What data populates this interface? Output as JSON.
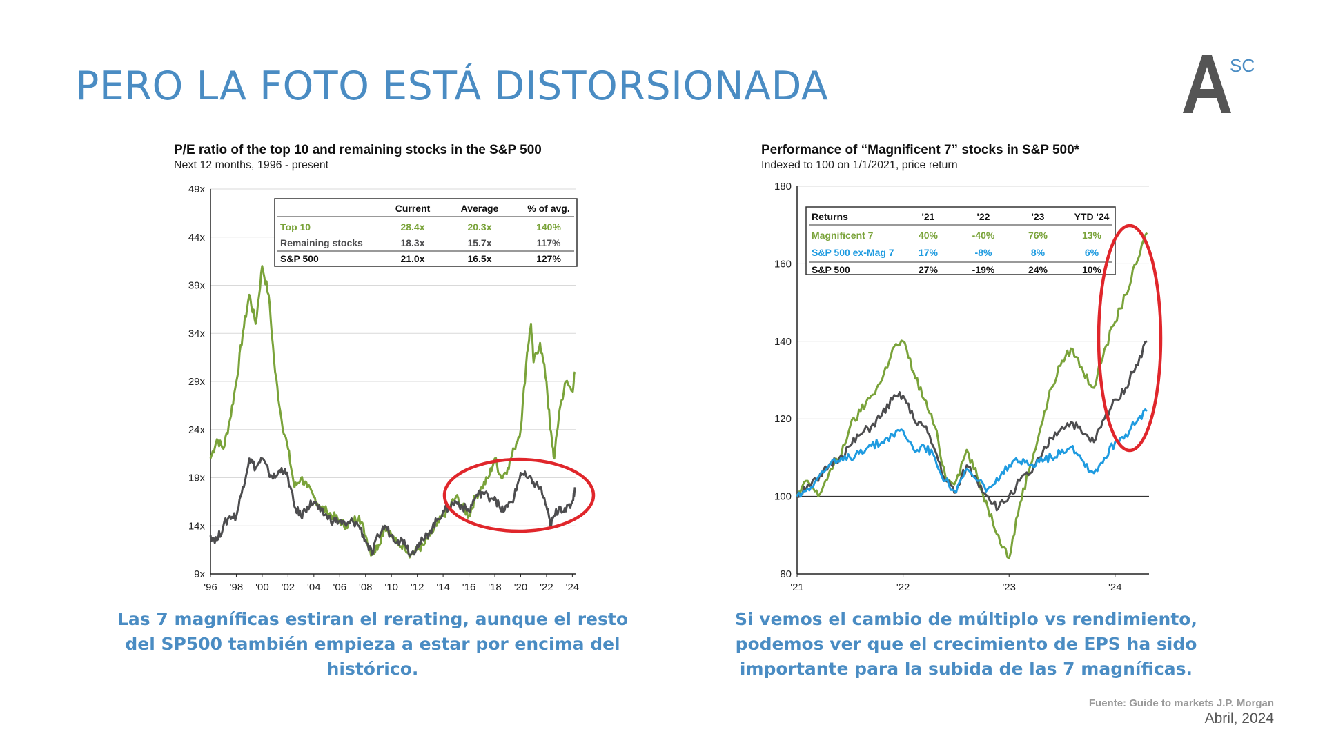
{
  "slide": {
    "title": "PERO LA FOTO ESTÁ DISTORSIONADA",
    "logo_text": "A",
    "logo_superscript": "SC",
    "caption_left": "Las 7 magníficas estiran el rerating, aunque el resto del SP500 también empieza a estar por encima del histórico.",
    "caption_right": "Si vemos el cambio de múltiplo vs rendimiento, podemos ver que el crecimiento de EPS ha sido importante para la subida de las 7 magníficas.",
    "source": "Fuente: Guide to markets J.P. Morgan",
    "date": "Abril, 2024"
  },
  "colors": {
    "title_blue": "#4a8cc3",
    "green": "#7aa33a",
    "gray": "#4d4d4f",
    "blue": "#1f9be0",
    "red": "#e0262b"
  },
  "chart_data": [
    {
      "type": "line",
      "title": "P/E ratio of the top 10 and remaining stocks in the S&P 500",
      "subtitle": "Next 12 months, 1996 - present",
      "ylim": [
        9,
        49
      ],
      "y_ticks": [
        "49x",
        "44x",
        "39x",
        "34x",
        "29x",
        "24x",
        "19x",
        "14x",
        "9x"
      ],
      "y_tick_values": [
        49,
        44,
        39,
        34,
        29,
        24,
        19,
        14,
        9
      ],
      "x_ticks": [
        "'96",
        "'98",
        "'00",
        "'02",
        "'04",
        "'06",
        "'08",
        "'10",
        "'12",
        "'14",
        "'16",
        "'18",
        "'20",
        "'22",
        "'24"
      ],
      "xlim": [
        1996,
        2024.3
      ],
      "table": {
        "headers": [
          "",
          "Current",
          "Average",
          "% of avg."
        ],
        "rows": [
          {
            "label": "Top 10",
            "values": [
              "28.4x",
              "20.3x",
              "140%"
            ],
            "color": "#7aa33a"
          },
          {
            "label": "Remaining stocks",
            "values": [
              "18.3x",
              "15.7x",
              "117%"
            ],
            "color": "#4d4d4f"
          },
          {
            "label": "S&P 500",
            "values": [
              "21.0x",
              "16.5x",
              "127%"
            ],
            "color": "#111111"
          }
        ]
      },
      "series": [
        {
          "color": "#7aa33a",
          "points": [
            [
              1996,
              21
            ],
            [
              1996.5,
              23
            ],
            [
              1997,
              22
            ],
            [
              1997.5,
              25
            ],
            [
              1998,
              29
            ],
            [
              1998.5,
              34
            ],
            [
              1999,
              38
            ],
            [
              1999.5,
              35
            ],
            [
              2000,
              41
            ],
            [
              2000.5,
              38
            ],
            [
              2001,
              30
            ],
            [
              2001.5,
              25
            ],
            [
              2002,
              22
            ],
            [
              2002.5,
              18
            ],
            [
              2003,
              19
            ],
            [
              2003.5,
              18
            ],
            [
              2004,
              17
            ],
            [
              2004.5,
              16
            ],
            [
              2005,
              15.5
            ],
            [
              2005.5,
              15
            ],
            [
              2006,
              14.5
            ],
            [
              2006.5,
              14
            ],
            [
              2007,
              14.5
            ],
            [
              2007.5,
              15
            ],
            [
              2008,
              13
            ],
            [
              2008.5,
              11
            ],
            [
              2009,
              12
            ],
            [
              2009.5,
              14
            ],
            [
              2010,
              13
            ],
            [
              2010.5,
              12
            ],
            [
              2011,
              12
            ],
            [
              2011.5,
              11
            ],
            [
              2012,
              11.5
            ],
            [
              2012.5,
              12
            ],
            [
              2013,
              13
            ],
            [
              2013.5,
              14
            ],
            [
              2014,
              15
            ],
            [
              2014.5,
              16
            ],
            [
              2015,
              17
            ],
            [
              2015.5,
              16
            ],
            [
              2016,
              15
            ],
            [
              2016.5,
              17
            ],
            [
              2017,
              18
            ],
            [
              2017.5,
              19
            ],
            [
              2018,
              21
            ],
            [
              2018.5,
              19
            ],
            [
              2019,
              20
            ],
            [
              2019.5,
              22
            ],
            [
              2020,
              24
            ],
            [
              2020.5,
              32
            ],
            [
              2020.8,
              35
            ],
            [
              2021,
              31
            ],
            [
              2021.5,
              33
            ],
            [
              2022,
              29
            ],
            [
              2022.3,
              24
            ],
            [
              2022.6,
              21
            ],
            [
              2023,
              26
            ],
            [
              2023.5,
              29
            ],
            [
              2024,
              28
            ],
            [
              2024.2,
              30
            ]
          ]
        },
        {
          "color": "#4d4d4f",
          "points": [
            [
              1996,
              13
            ],
            [
              1996.5,
              12.5
            ],
            [
              1997,
              14
            ],
            [
              1997.5,
              15
            ],
            [
              1998,
              15
            ],
            [
              1998.5,
              18
            ],
            [
              1999,
              21
            ],
            [
              1999.5,
              20
            ],
            [
              2000,
              21
            ],
            [
              2000.5,
              19.5
            ],
            [
              2001,
              19
            ],
            [
              2001.5,
              20
            ],
            [
              2002,
              19
            ],
            [
              2002.5,
              16
            ],
            [
              2003,
              15
            ],
            [
              2003.5,
              16
            ],
            [
              2004,
              16.5
            ],
            [
              2004.5,
              15.5
            ],
            [
              2005,
              15
            ],
            [
              2005.5,
              14.5
            ],
            [
              2006,
              14.5
            ],
            [
              2006.5,
              14
            ],
            [
              2007,
              14.5
            ],
            [
              2007.5,
              14
            ],
            [
              2008,
              12.5
            ],
            [
              2008.5,
              11
            ],
            [
              2009,
              13
            ],
            [
              2009.5,
              14
            ],
            [
              2010,
              13
            ],
            [
              2010.5,
              12.5
            ],
            [
              2011,
              12.5
            ],
            [
              2011.5,
              11
            ],
            [
              2012,
              12
            ],
            [
              2012.5,
              12.5
            ],
            [
              2013,
              13.5
            ],
            [
              2013.5,
              14.5
            ],
            [
              2014,
              15.5
            ],
            [
              2014.5,
              16
            ],
            [
              2015,
              16.5
            ],
            [
              2015.5,
              16
            ],
            [
              2016,
              15.5
            ],
            [
              2016.5,
              17
            ],
            [
              2017,
              17.5
            ],
            [
              2017.5,
              17
            ],
            [
              2018,
              17
            ],
            [
              2018.5,
              15.5
            ],
            [
              2019,
              16
            ],
            [
              2019.5,
              17
            ],
            [
              2020,
              19.5
            ],
            [
              2020.5,
              19
            ],
            [
              2021,
              18.5
            ],
            [
              2021.5,
              18
            ],
            [
              2022,
              16
            ],
            [
              2022.3,
              14
            ],
            [
              2022.6,
              15
            ],
            [
              2023,
              16
            ],
            [
              2023.5,
              15.5
            ],
            [
              2024,
              16.5
            ],
            [
              2024.2,
              18
            ]
          ]
        }
      ],
      "annotation": "red ellipse highlighting 2015-2024"
    },
    {
      "type": "line",
      "title": "Performance of “Magnificent 7” stocks in S&P 500*",
      "subtitle": "Indexed to 100 on 1/1/2021, price return",
      "ylim": [
        80,
        180
      ],
      "y_ticks": [
        "180",
        "160",
        "140",
        "120",
        "100",
        "80"
      ],
      "y_tick_values": [
        180,
        160,
        140,
        120,
        100,
        80
      ],
      "x_ticks": [
        "'21",
        "'22",
        "'23",
        "'24"
      ],
      "xlim": [
        2021,
        2024.32
      ],
      "table": {
        "headers": [
          "Returns",
          "'21",
          "'22",
          "'23",
          "YTD '24"
        ],
        "rows": [
          {
            "label": "Magnificent 7",
            "values": [
              "40%",
              "-40%",
              "76%",
              "13%"
            ],
            "color": "#7aa33a"
          },
          {
            "label": "S&P 500 ex-Mag 7",
            "values": [
              "17%",
              "-8%",
              "8%",
              "6%"
            ],
            "color": "#1f9be0"
          },
          {
            "label": "S&P 500",
            "values": [
              "27%",
              "-19%",
              "24%",
              "10%"
            ],
            "color": "#111111"
          }
        ]
      },
      "series": [
        {
          "color": "#7aa33a",
          "points": [
            [
              2021,
              100
            ],
            [
              2021.1,
              104
            ],
            [
              2021.2,
              100
            ],
            [
              2021.3,
              106
            ],
            [
              2021.4,
              110
            ],
            [
              2021.5,
              118
            ],
            [
              2021.6,
              122
            ],
            [
              2021.7,
              126
            ],
            [
              2021.8,
              130
            ],
            [
              2021.9,
              138
            ],
            [
              2022,
              140
            ],
            [
              2022.1,
              132
            ],
            [
              2022.2,
              125
            ],
            [
              2022.3,
              118
            ],
            [
              2022.4,
              105
            ],
            [
              2022.5,
              104
            ],
            [
              2022.6,
              112
            ],
            [
              2022.7,
              105
            ],
            [
              2022.8,
              97
            ],
            [
              2022.9,
              90
            ],
            [
              2023,
              84
            ],
            [
              2023.1,
              98
            ],
            [
              2023.2,
              108
            ],
            [
              2023.3,
              118
            ],
            [
              2023.4,
              128
            ],
            [
              2023.5,
              135
            ],
            [
              2023.6,
              138
            ],
            [
              2023.7,
              132
            ],
            [
              2023.8,
              128
            ],
            [
              2023.9,
              138
            ],
            [
              2024,
              145
            ],
            [
              2024.1,
              152
            ],
            [
              2024.2,
              160
            ],
            [
              2024.3,
              168
            ]
          ]
        },
        {
          "color": "#4d4d4f",
          "points": [
            [
              2021,
              100
            ],
            [
              2021.1,
              103
            ],
            [
              2021.2,
              104
            ],
            [
              2021.3,
              108
            ],
            [
              2021.4,
              110
            ],
            [
              2021.5,
              113
            ],
            [
              2021.6,
              116
            ],
            [
              2021.7,
              118
            ],
            [
              2021.8,
              121
            ],
            [
              2021.9,
              125
            ],
            [
              2022,
              126
            ],
            [
              2022.1,
              120
            ],
            [
              2022.2,
              118
            ],
            [
              2022.3,
              112
            ],
            [
              2022.4,
              104
            ],
            [
              2022.5,
              101
            ],
            [
              2022.6,
              108
            ],
            [
              2022.7,
              104
            ],
            [
              2022.8,
              100
            ],
            [
              2022.9,
              97
            ],
            [
              2023,
              100
            ],
            [
              2023.1,
              104
            ],
            [
              2023.2,
              106
            ],
            [
              2023.3,
              110
            ],
            [
              2023.4,
              115
            ],
            [
              2023.5,
              118
            ],
            [
              2023.6,
              119
            ],
            [
              2023.7,
              116
            ],
            [
              2023.8,
              114
            ],
            [
              2023.9,
              120
            ],
            [
              2024,
              125
            ],
            [
              2024.1,
              128
            ],
            [
              2024.2,
              134
            ],
            [
              2024.3,
              140
            ]
          ]
        },
        {
          "color": "#1f9be0",
          "points": [
            [
              2021,
              100
            ],
            [
              2021.1,
              102
            ],
            [
              2021.2,
              105
            ],
            [
              2021.3,
              108
            ],
            [
              2021.4,
              109
            ],
            [
              2021.5,
              110
            ],
            [
              2021.6,
              112
            ],
            [
              2021.7,
              113
            ],
            [
              2021.8,
              114
            ],
            [
              2021.9,
              116
            ],
            [
              2022,
              117
            ],
            [
              2022.1,
              112
            ],
            [
              2022.2,
              113
            ],
            [
              2022.3,
              110
            ],
            [
              2022.4,
              104
            ],
            [
              2022.5,
              101
            ],
            [
              2022.6,
              107
            ],
            [
              2022.7,
              104
            ],
            [
              2022.8,
              102
            ],
            [
              2022.9,
              104
            ],
            [
              2023,
              108
            ],
            [
              2023.1,
              109
            ],
            [
              2023.2,
              108
            ],
            [
              2023.3,
              110
            ],
            [
              2023.4,
              110
            ],
            [
              2023.5,
              112
            ],
            [
              2023.6,
              113
            ],
            [
              2023.7,
              109
            ],
            [
              2023.8,
              106
            ],
            [
              2023.9,
              110
            ],
            [
              2024,
              114
            ],
            [
              2024.1,
              116
            ],
            [
              2024.2,
              119
            ],
            [
              2024.3,
              122
            ]
          ]
        }
      ],
      "annotation": "red ellipse highlighting 2024"
    }
  ]
}
